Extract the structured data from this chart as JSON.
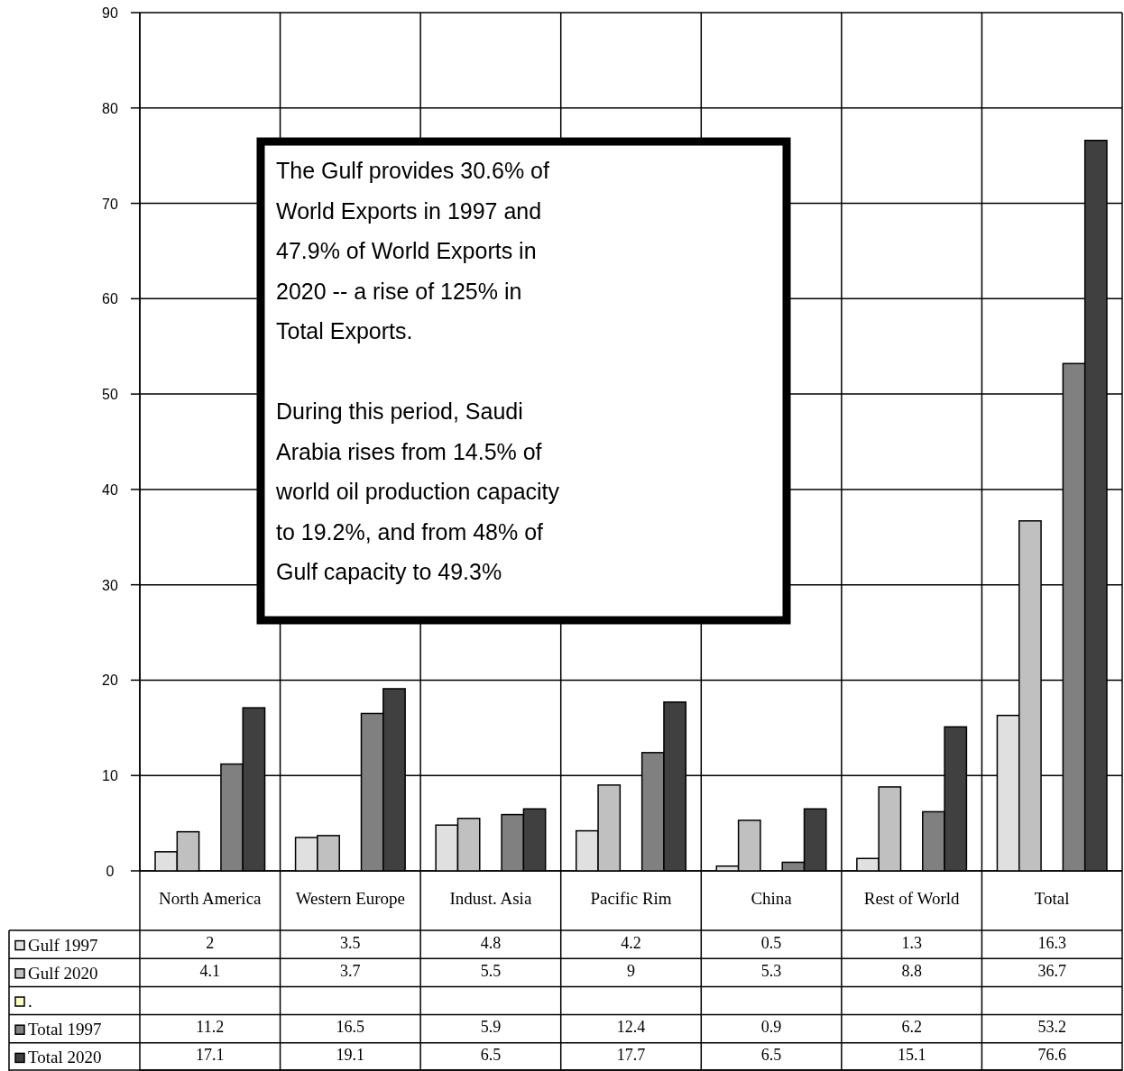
{
  "chart_data": {
    "type": "bar",
    "categories": [
      "North America",
      "Western Europe",
      "Indust. Asia",
      "Pacific Rim",
      "China",
      "Rest of World",
      "Total"
    ],
    "series": [
      {
        "name": "Gulf 1997",
        "color": "#e0e0e0",
        "values": [
          2,
          3.5,
          4.8,
          4.2,
          0.5,
          1.3,
          16.3
        ]
      },
      {
        "name": "Gulf 2020",
        "color": "#c0c0c0",
        "values": [
          4.1,
          3.7,
          5.5,
          9,
          5.3,
          8.8,
          36.7
        ]
      },
      {
        "name": ".",
        "color": "#ffffc0",
        "values": [
          null,
          null,
          null,
          null,
          null,
          null,
          null
        ]
      },
      {
        "name": "Total 1997",
        "color": "#808080",
        "values": [
          11.2,
          16.5,
          5.9,
          12.4,
          0.9,
          6.2,
          53.2
        ]
      },
      {
        "name": "Total 2020",
        "color": "#404040",
        "values": [
          17.1,
          19.1,
          6.5,
          17.7,
          6.5,
          15.1,
          76.6
        ]
      }
    ],
    "ylim": [
      0,
      90
    ],
    "yticks": [
      0,
      10,
      20,
      30,
      40,
      50,
      60,
      70,
      80,
      90
    ],
    "grid": true,
    "legend": "bottom",
    "data_labels": true,
    "annotations": [
      "The Gulf provides 30.6% of\nWorld Exports in 1997 and\n47.9% of World Exports in\n2020 -- a rise of 125% in\nTotal Exports.\n\nDuring this period, Saudi\nArabia rises from 14.5% of\nworld oil production capacity\nto  19.2%, and from 48% of\nGulf capacity to 49.3%"
    ]
  }
}
